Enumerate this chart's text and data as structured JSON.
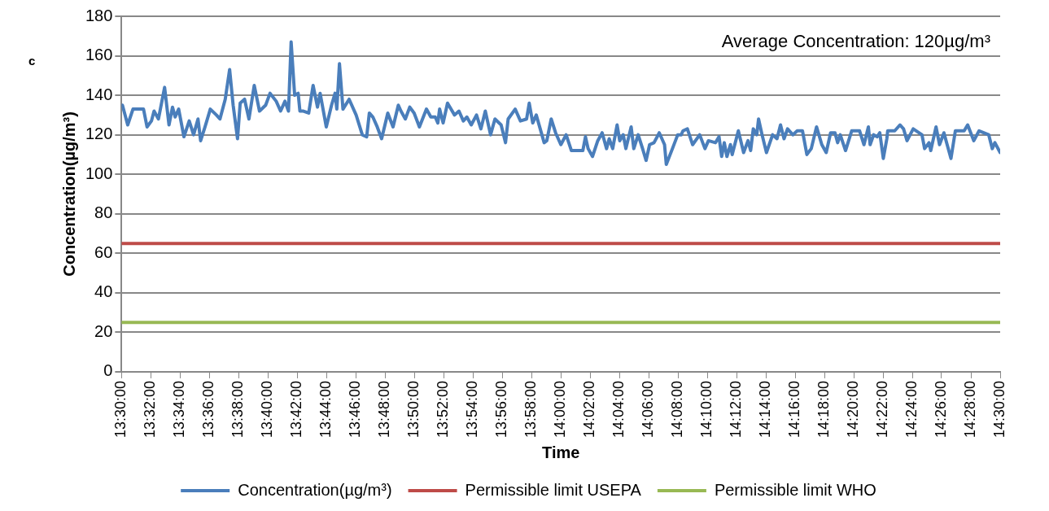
{
  "chart_data": {
    "type": "line",
    "xlabel": "Time",
    "ylabel": "Concentration(µg/m³)",
    "annotations": [
      "c",
      "Average Concentration: 120µg/m³"
    ],
    "xlim": [
      13.5,
      14.5
    ],
    "xticks": [
      {
        "value": 13.5,
        "label": "13:30:00"
      },
      {
        "value": 13.5333,
        "label": "13:32:00"
      },
      {
        "value": 13.5667,
        "label": "13:34:00"
      },
      {
        "value": 13.6,
        "label": "13:36:00"
      },
      {
        "value": 13.6333,
        "label": "13:38:00"
      },
      {
        "value": 13.6667,
        "label": "13:40:00"
      },
      {
        "value": 13.7,
        "label": "13:42:00"
      },
      {
        "value": 13.7333,
        "label": "13:44:00"
      },
      {
        "value": 13.7667,
        "label": "13:46:00"
      },
      {
        "value": 13.8,
        "label": "13:48:00"
      },
      {
        "value": 13.8333,
        "label": "13:50:00"
      },
      {
        "value": 13.8667,
        "label": "13:52:00"
      },
      {
        "value": 13.9,
        "label": "13:54:00"
      },
      {
        "value": 13.9333,
        "label": "13:56:00"
      },
      {
        "value": 13.9667,
        "label": "13:58:00"
      },
      {
        "value": 14,
        "label": "14:00:00"
      },
      {
        "value": 14.0333,
        "label": "14:02:00"
      },
      {
        "value": 14.0667,
        "label": "14:04:00"
      },
      {
        "value": 14.1,
        "label": "14:06:00"
      },
      {
        "value": 14.1333,
        "label": "14:08:00"
      },
      {
        "value": 14.1667,
        "label": "14:10:00"
      },
      {
        "value": 14.2,
        "label": "14:12:00"
      },
      {
        "value": 14.2333,
        "label": "14:14:00"
      },
      {
        "value": 14.2667,
        "label": "14:16:00"
      },
      {
        "value": 14.3,
        "label": "14:18:00"
      },
      {
        "value": 14.3333,
        "label": "14:20:00"
      },
      {
        "value": 14.3667,
        "label": "14:22:00"
      },
      {
        "value": 14.4,
        "label": "14:24:00"
      },
      {
        "value": 14.4333,
        "label": "14:26:00"
      },
      {
        "value": 14.4667,
        "label": "14:28:00"
      },
      {
        "value": 14.5,
        "label": "14:30:00"
      }
    ],
    "ylim": [
      0,
      180
    ],
    "yticks": [
      0,
      20,
      40,
      60,
      80,
      100,
      120,
      140,
      160,
      180
    ],
    "grid": "y",
    "legend": "bottom",
    "marker": "none",
    "line_style": "solid",
    "series": [
      {
        "name": "Concentration(µg/m³)",
        "color": "#4a7ebb",
        "x": [
          13.501,
          13.507,
          13.513,
          13.525,
          13.529,
          13.534,
          13.537,
          13.542,
          13.549,
          13.554,
          13.558,
          13.561,
          13.565,
          13.571,
          13.577,
          13.582,
          13.587,
          13.59,
          13.595,
          13.601,
          13.608,
          13.612,
          13.618,
          13.623,
          13.627,
          13.632,
          13.635,
          13.64,
          13.645,
          13.651,
          13.657,
          13.664,
          13.669,
          13.676,
          13.681,
          13.686,
          13.69,
          13.693,
          13.697,
          13.701,
          13.703,
          13.707,
          13.713,
          13.718,
          13.723,
          13.726,
          13.733,
          13.739,
          13.743,
          13.745,
          13.748,
          13.752,
          13.759,
          13.767,
          13.774,
          13.779,
          13.782,
          13.786,
          13.791,
          13.796,
          13.803,
          13.809,
          13.815,
          13.818,
          13.823,
          13.828,
          13.833,
          13.839,
          13.847,
          13.852,
          13.857,
          13.86,
          13.862,
          13.866,
          13.871,
          13.879,
          13.884,
          13.889,
          13.893,
          13.898,
          13.904,
          13.909,
          13.914,
          13.92,
          13.925,
          13.932,
          13.937,
          13.94,
          13.948,
          13.954,
          13.961,
          13.964,
          13.968,
          13.972,
          13.981,
          13.984,
          13.989,
          13.994,
          14,
          14.006,
          14.012,
          14.025,
          14.028,
          14.031,
          14.036,
          14.042,
          14.047,
          14.052,
          14.055,
          14.059,
          14.064,
          14.067,
          14.071,
          14.074,
          14.08,
          14.083,
          14.088,
          14.093,
          14.097,
          14.101,
          14.106,
          14.112,
          14.118,
          14.12,
          14.127,
          14.133,
          14.137,
          14.139,
          14.144,
          14.15,
          14.158,
          14.164,
          14.168,
          14.176,
          14.18,
          14.183,
          14.186,
          14.189,
          14.193,
          14.195,
          14.202,
          14.208,
          14.213,
          14.216,
          14.219,
          14.223,
          14.225,
          14.229,
          14.234,
          14.241,
          14.246,
          14.25,
          14.254,
          14.258,
          14.264,
          14.269,
          14.275,
          14.28,
          14.285,
          14.291,
          14.297,
          14.302,
          14.307,
          14.312,
          14.315,
          14.318,
          14.324,
          14.331,
          14.34,
          14.345,
          14.35,
          14.352,
          14.356,
          14.36,
          14.363,
          14.367,
          14.371,
          14.372,
          14.38,
          14.386,
          14.39,
          14.394,
          14.401,
          14.411,
          14.414,
          14.419,
          14.421,
          14.427,
          14.431,
          14.436,
          14.439,
          14.444,
          14.449,
          14.459,
          14.463,
          14.47,
          14.476,
          14.487,
          14.491,
          14.494,
          14.5
        ],
        "values": [
          135,
          125,
          133,
          133,
          124,
          127,
          132,
          128,
          144,
          125,
          134,
          129,
          133,
          119,
          127,
          120,
          128,
          117,
          124,
          133,
          130,
          128,
          138,
          153,
          135,
          118,
          136,
          138,
          128,
          145,
          132,
          135,
          141,
          137,
          132,
          137,
          132,
          167,
          140,
          141,
          132,
          132,
          131,
          145,
          134,
          141,
          124,
          135,
          141,
          133,
          156,
          133,
          138,
          130,
          120,
          119,
          131,
          129,
          124,
          118,
          131,
          124,
          135,
          132,
          128,
          134,
          131,
          124,
          133,
          129,
          129,
          126,
          133,
          126,
          136,
          130,
          132,
          127,
          129,
          125,
          130,
          123,
          132,
          120,
          128,
          125,
          116,
          128,
          133,
          127,
          128,
          136,
          126,
          130,
          116,
          117,
          128,
          121,
          115,
          120,
          112,
          112,
          119,
          113,
          109,
          117,
          121,
          113,
          118,
          113,
          125,
          117,
          120,
          113,
          124,
          113,
          120,
          113,
          107,
          115,
          116,
          121,
          115,
          105,
          113,
          120,
          120,
          122,
          123,
          115,
          120,
          113,
          117,
          116,
          119,
          109,
          116,
          109,
          115,
          110,
          122,
          111,
          117,
          112,
          123,
          120,
          128,
          120,
          111,
          120,
          118,
          125,
          118,
          123,
          120,
          122,
          122,
          110,
          113,
          124,
          115,
          111,
          121,
          121,
          116,
          120,
          112,
          122,
          122,
          115,
          124,
          115,
          120,
          119,
          121,
          108,
          118,
          122,
          122,
          125,
          123,
          117,
          123,
          120,
          113,
          116,
          112,
          124,
          115,
          121,
          116,
          108,
          122,
          122,
          125,
          117,
          122,
          120,
          113,
          116,
          111
        ]
      },
      {
        "name": "Permissible limit USEPA",
        "color": "#be4b48",
        "x": [
          13.5,
          14.5
        ],
        "values": [
          65,
          65
        ]
      },
      {
        "name": "Permissible limit WHO",
        "color": "#98b954",
        "x": [
          13.5,
          14.5
        ],
        "values": [
          25,
          25
        ]
      }
    ]
  }
}
